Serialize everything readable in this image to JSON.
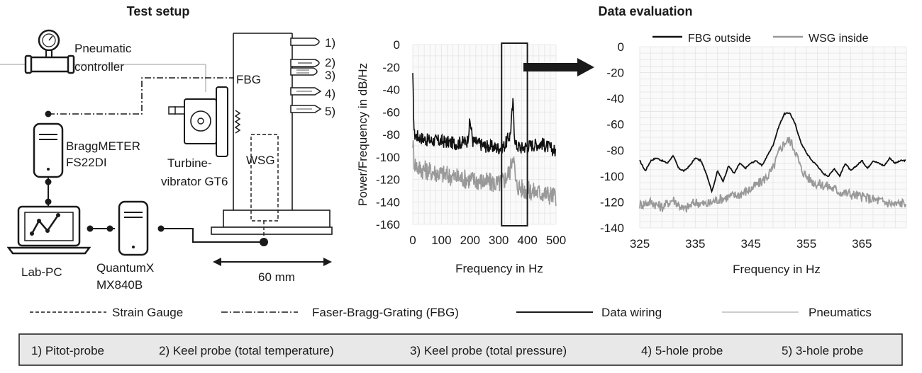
{
  "setup": {
    "title": "Test setup",
    "pneumatic_controller": [
      "Pneumatic",
      "controller"
    ],
    "fbg_label": "FBG",
    "braggmeter": [
      "BraggMETER",
      "FS22DI"
    ],
    "turbine_vibrator": [
      "Turbine-",
      "vibrator GT6"
    ],
    "wsg_label": "WSG",
    "lab_pc": "Lab-PC",
    "quantumx": [
      "QuantumX",
      "MX840B"
    ],
    "dimension": "60 mm",
    "probe_numbers": [
      "1)",
      "2)",
      "3)",
      "4)",
      "5)"
    ]
  },
  "evaluation": {
    "title": "Data evaluation"
  },
  "chart_data": [
    {
      "type": "line",
      "ylabel": "Power/Frequency in dB/Hz",
      "xlabel": "Frequency in Hz",
      "xlim": [
        0,
        500
      ],
      "ylim": [
        -160,
        0
      ],
      "xticks": [
        0,
        100,
        200,
        300,
        400,
        500
      ],
      "yticks": [
        0,
        -20,
        -40,
        -60,
        -80,
        -100,
        -120,
        -140,
        -160
      ],
      "grid": true,
      "highlight_window": [
        310,
        400
      ],
      "series": [
        {
          "color": "#111111",
          "x": [
            0,
            5,
            20,
            50,
            100,
            150,
            190,
            200,
            210,
            250,
            300,
            320,
            340,
            350,
            355,
            360,
            380,
            400,
            450,
            500
          ],
          "y": [
            -30,
            -80,
            -82,
            -85,
            -86,
            -88,
            -86,
            -68,
            -86,
            -90,
            -92,
            -90,
            -80,
            -51,
            -80,
            -90,
            -92,
            -90,
            -88,
            -95
          ]
        },
        {
          "color": "#999999",
          "x": [
            0,
            5,
            20,
            50,
            100,
            150,
            200,
            250,
            300,
            320,
            340,
            350,
            355,
            360,
            380,
            400,
            450,
            500
          ],
          "y": [
            -85,
            -105,
            -110,
            -112,
            -115,
            -118,
            -120,
            -122,
            -124,
            -120,
            -112,
            -95,
            -110,
            -125,
            -128,
            -130,
            -132,
            -135
          ]
        }
      ]
    },
    {
      "type": "line",
      "xlabel": "Frequency in Hz",
      "xlim": [
        325,
        373
      ],
      "ylim": [
        -140,
        0
      ],
      "xticks": [
        325,
        335,
        345,
        355,
        365
      ],
      "yticks": [
        0,
        -20,
        -40,
        -60,
        -80,
        -100,
        -120,
        -140
      ],
      "grid": true,
      "legend": "top",
      "series": [
        {
          "name": "FBG outside",
          "color": "#111111",
          "x": [
            325,
            326,
            327,
            328,
            329,
            330,
            331,
            332,
            333,
            334,
            335,
            336,
            337,
            338,
            339,
            340,
            341,
            342,
            343,
            344,
            345,
            346,
            347,
            348,
            349,
            350,
            351,
            352,
            353,
            354,
            355,
            356,
            357,
            358,
            359,
            360,
            361,
            362,
            363,
            364,
            365,
            366,
            367,
            368,
            369,
            370,
            371,
            372,
            373
          ],
          "y": [
            -88,
            -96,
            -88,
            -86,
            -88,
            -90,
            -84,
            -94,
            -96,
            -92,
            -86,
            -88,
            -98,
            -112,
            -96,
            -104,
            -92,
            -98,
            -90,
            -94,
            -90,
            -88,
            -92,
            -84,
            -76,
            -62,
            -52,
            -51,
            -60,
            -74,
            -82,
            -88,
            -92,
            -98,
            -100,
            -94,
            -100,
            -90,
            -96,
            -92,
            -88,
            -94,
            -88,
            -90,
            -92,
            -86,
            -90,
            -88,
            -88
          ]
        },
        {
          "name": "WSG inside",
          "color": "#999999",
          "x": [
            325,
            327,
            329,
            331,
            333,
            335,
            337,
            339,
            341,
            343,
            345,
            347,
            348,
            349,
            350,
            351,
            352,
            353,
            354,
            355,
            356,
            357,
            359,
            361,
            363,
            365,
            367,
            369,
            371,
            373
          ],
          "y": [
            -122,
            -120,
            -124,
            -118,
            -126,
            -120,
            -122,
            -118,
            -116,
            -114,
            -110,
            -104,
            -100,
            -94,
            -82,
            -74,
            -72,
            -80,
            -94,
            -100,
            -104,
            -106,
            -108,
            -112,
            -114,
            -116,
            -118,
            -120,
            -122,
            -120
          ]
        }
      ]
    }
  ],
  "legend_items": [
    "Strain Gauge",
    "Faser-Bragg-Grating (FBG)",
    "Data wiring",
    "Pneumatics"
  ],
  "probe_legend": [
    "1) Pitot-probe",
    "2) Keel probe (total temperature)",
    "3) Keel probe (total pressure)",
    "4) 5-hole probe",
    "5) 3-hole probe"
  ]
}
